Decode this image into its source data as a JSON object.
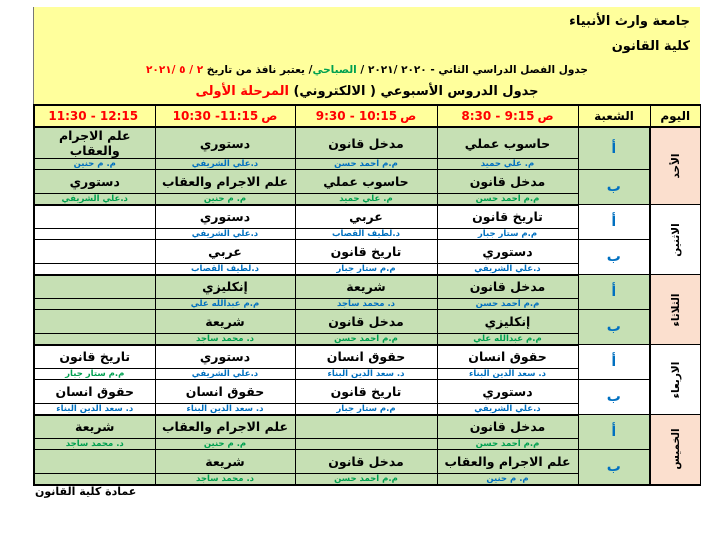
{
  "colors": {
    "yellow": "#FFFF9C",
    "green-row": "#C6E0B4",
    "pink": "#FBDFCE",
    "blue": "#0070C0",
    "tgreen": "#00A050",
    "red": "#FF0000",
    "ink": "#000000"
  },
  "header": {
    "university": "جامعة وارث الأنبياء",
    "college": "كلية القانون",
    "semester": {
      "prefix": "جدول الفصل الدراسي الثاني - ٢٠٢٠ /٢٠٢١ / ",
      "shift": "الصباحي",
      "middle": "/ يعتبر نافذ من تاريخ ",
      "effective_date": "٢ / ٥ /٢٠٢١"
    },
    "title": {
      "prefix": "جدول الدروس الأسبوعي ( الالكتروني) ",
      "stage": "المرحلة الأولى"
    }
  },
  "table": {
    "headers": {
      "day": "اليوم",
      "section": "الشعبة"
    },
    "time_slots": [
      {
        "range": "8:30 - 9:15",
        "am": "ص"
      },
      {
        "range": "9:30 - 10:15",
        "am": "ص"
      },
      {
        "range": "10:30 -11:15",
        "am": "ص"
      },
      {
        "range": "11:30 - 12:15",
        "am": ""
      }
    ],
    "days": [
      {
        "name": "الأحد",
        "tint": "pink",
        "shade": "green",
        "sections": [
          {
            "label": "أ",
            "slots": [
              {
                "subject": "حاسوب عملي",
                "teacher": "م. علي حميد",
                "tcolor": "blue"
              },
              {
                "subject": "مدخل قانون",
                "teacher": "م.م احمد حسن",
                "tcolor": "blue"
              },
              {
                "subject": "دستوري",
                "teacher": "د.علي الشريفي",
                "tcolor": "blue"
              },
              {
                "subject": "علم الاجرام والعقاب",
                "teacher": "م. م حنين",
                "tcolor": "blue"
              }
            ]
          },
          {
            "label": "ب",
            "slots": [
              {
                "subject": "مدخل قانون",
                "teacher": "م.م احمد حسن",
                "tcolor": "green"
              },
              {
                "subject": "حاسوب عملي",
                "teacher": "م. علي حميد",
                "tcolor": "green"
              },
              {
                "subject": "علم الاجرام والعقاب",
                "teacher": "م. م حنين",
                "tcolor": "green"
              },
              {
                "subject": "دستوري",
                "teacher": "د.علي الشريفي",
                "tcolor": "green"
              }
            ]
          }
        ]
      },
      {
        "name": "الاثنين",
        "tint": "white",
        "shade": "white",
        "sections": [
          {
            "label": "أ",
            "slots": [
              {
                "subject": "تاريخ قانون",
                "teacher": "م.م ستار جبار",
                "tcolor": "blue"
              },
              {
                "subject": "عربي",
                "teacher": "د.لطيف القصاب",
                "tcolor": "blue"
              },
              {
                "subject": "دستوري",
                "teacher": "د.علي الشريفي",
                "tcolor": "blue"
              },
              {
                "subject": "",
                "teacher": "",
                "tcolor": ""
              }
            ]
          },
          {
            "label": "ب",
            "slots": [
              {
                "subject": "دستوري",
                "teacher": "د.علي الشريفي",
                "tcolor": "blue"
              },
              {
                "subject": "تاريخ قانون",
                "teacher": "م.م ستار جبار",
                "tcolor": "blue"
              },
              {
                "subject": "عربي",
                "teacher": "د.لطيف القصاب",
                "tcolor": "blue"
              },
              {
                "subject": "",
                "teacher": "",
                "tcolor": ""
              }
            ]
          }
        ]
      },
      {
        "name": "الثلاثاء",
        "tint": "pink",
        "shade": "green",
        "sections": [
          {
            "label": "أ",
            "slots": [
              {
                "subject": "مدخل قانون",
                "teacher": "م.م احمد حسن",
                "tcolor": "blue"
              },
              {
                "subject": "شريعة",
                "teacher": "د. محمد ساجد",
                "tcolor": "blue"
              },
              {
                "subject": "إنكليزي",
                "teacher": "م.م عبدالله علي",
                "tcolor": "blue"
              },
              {
                "subject": "",
                "teacher": "",
                "tcolor": ""
              }
            ]
          },
          {
            "label": "ب",
            "slots": [
              {
                "subject": "إنكليزي",
                "teacher": "م.م عبدالله علي",
                "tcolor": "green"
              },
              {
                "subject": "مدخل قانون",
                "teacher": "م.م احمد حسن",
                "tcolor": "green"
              },
              {
                "subject": "شريعة",
                "teacher": "د. محمد ساجد",
                "tcolor": "green"
              },
              {
                "subject": "",
                "teacher": "",
                "tcolor": ""
              }
            ]
          }
        ]
      },
      {
        "name": "الاربعاء",
        "tint": "white",
        "shade": "white",
        "sections": [
          {
            "label": "أ",
            "slots": [
              {
                "subject": "حقوق انسان",
                "teacher": "د. سعد الدين البناء",
                "tcolor": "blue"
              },
              {
                "subject": "حقوق انسان",
                "teacher": "د. سعد الدين البناء",
                "tcolor": "blue"
              },
              {
                "subject": "دستوري",
                "teacher": "د.علي الشريفي",
                "tcolor": "blue"
              },
              {
                "subject": "تاريخ قانون",
                "teacher": "م.م ستار جبار",
                "tcolor": "green"
              }
            ]
          },
          {
            "label": "ب",
            "slots": [
              {
                "subject": "دستوري",
                "teacher": "د.علي الشريفي",
                "tcolor": "blue"
              },
              {
                "subject": "تاريخ قانون",
                "teacher": "م.م ستار جبار",
                "tcolor": "blue"
              },
              {
                "subject": "حقوق انسان",
                "teacher": "د. سعد الدين البناء",
                "tcolor": "blue"
              },
              {
                "subject": "حقوق انسان",
                "teacher": "د. سعد الدين البناء",
                "tcolor": "blue"
              }
            ]
          }
        ]
      },
      {
        "name": "الخميس",
        "tint": "pink",
        "shade": "green",
        "sections": [
          {
            "label": "أ",
            "slots": [
              {
                "subject": "مدخل قانون",
                "teacher": "م.م احمد حسن",
                "tcolor": "green"
              },
              {
                "subject": "",
                "teacher": "",
                "tcolor": ""
              },
              {
                "subject": "علم الاجرام والعقاب",
                "teacher": "م. م حنين",
                "tcolor": "green"
              },
              {
                "subject": "شريعة",
                "teacher": "د. محمد ساجد",
                "tcolor": "green"
              }
            ]
          },
          {
            "label": "ب",
            "slots": [
              {
                "subject": "علم الاجرام والعقاب",
                "teacher": "م. م حنين",
                "tcolor": "blue"
              },
              {
                "subject": "مدخل قانون",
                "teacher": "م.م احمد حسن",
                "tcolor": "green"
              },
              {
                "subject": "شريعة",
                "teacher": "د. محمد ساجد",
                "tcolor": "green"
              },
              {
                "subject": "",
                "teacher": "",
                "tcolor": ""
              }
            ]
          }
        ]
      }
    ]
  },
  "footer": {
    "text": "عمادة كلية القانون"
  }
}
